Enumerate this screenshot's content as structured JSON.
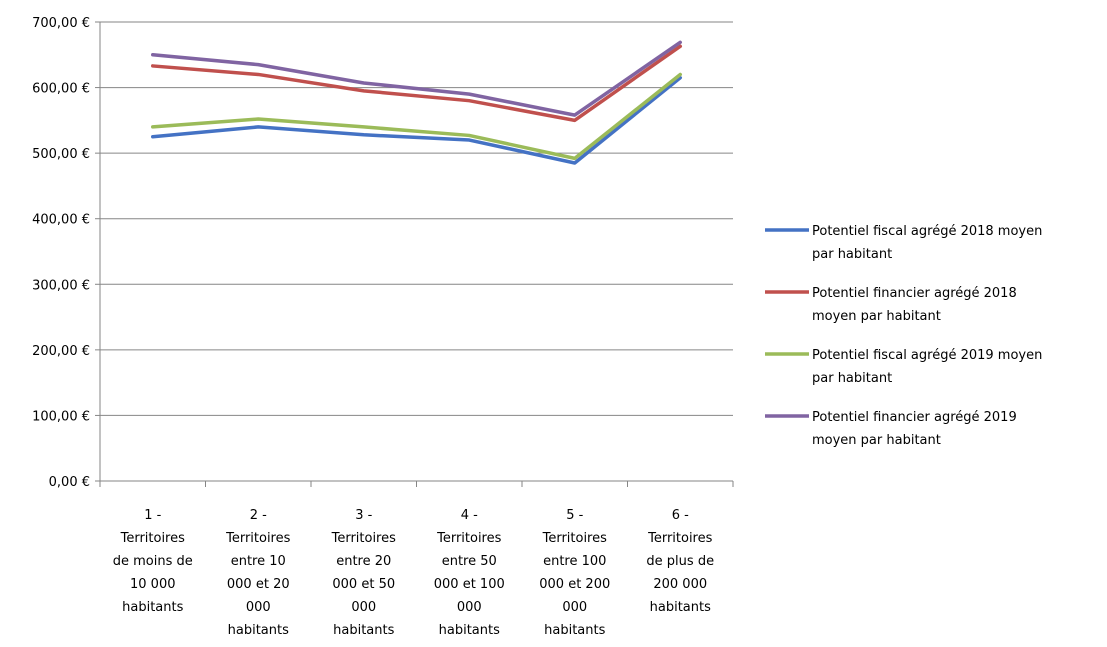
{
  "chart_data": {
    "type": "line",
    "title": "",
    "xlabel": "",
    "ylabel": "",
    "ylim": [
      0,
      700
    ],
    "yticks": [
      "0,00 €",
      "100,00 €",
      "200,00 €",
      "300,00 €",
      "400,00 €",
      "500,00 €",
      "600,00 €",
      "700,00 €"
    ],
    "grid": true,
    "legend_position": "right",
    "categories": [
      [
        "1 -",
        "Territoires",
        "de moins de",
        "10 000",
        "habitants"
      ],
      [
        "2 -",
        "Territoires",
        "entre 10",
        "000 et 20",
        "000",
        "habitants"
      ],
      [
        "3 -",
        "Territoires",
        "entre 20",
        "000 et 50",
        "000",
        "habitants"
      ],
      [
        "4 -",
        "Territoires",
        "entre 50",
        "000 et 100",
        "000",
        "habitants"
      ],
      [
        "5 -",
        "Territoires",
        "entre 100",
        "000 et 200",
        "000",
        "habitants"
      ],
      [
        "6 -",
        "Territoires",
        "de plus de",
        "200 000",
        "habitants"
      ]
    ],
    "series": [
      {
        "name": "Potentiel fiscal agrégé 2018 moyen par habitant",
        "legend_lines": [
          "Potentiel fiscal agrégé 2018 moyen",
          "par habitant"
        ],
        "color": "#4472C4",
        "values": [
          525,
          540,
          528,
          520,
          485,
          615
        ]
      },
      {
        "name": "Potentiel financier agrégé 2018 moyen par habitant",
        "legend_lines": [
          "Potentiel financier agrégé 2018",
          "moyen par habitant"
        ],
        "color": "#C0504D",
        "values": [
          633,
          620,
          595,
          580,
          550,
          663
        ]
      },
      {
        "name": "Potentiel fiscal agrégé 2019 moyen par habitant",
        "legend_lines": [
          "Potentiel fiscal agrégé 2019 moyen",
          "par habitant"
        ],
        "color": "#9BBB59",
        "values": [
          540,
          552,
          540,
          527,
          492,
          620
        ]
      },
      {
        "name": "Potentiel financier agrégé 2019 moyen par habitant",
        "legend_lines": [
          "Potentiel financier agrégé 2019",
          "moyen par habitant"
        ],
        "color": "#8064A2",
        "values": [
          650,
          635,
          607,
          590,
          558,
          669
        ]
      }
    ]
  }
}
